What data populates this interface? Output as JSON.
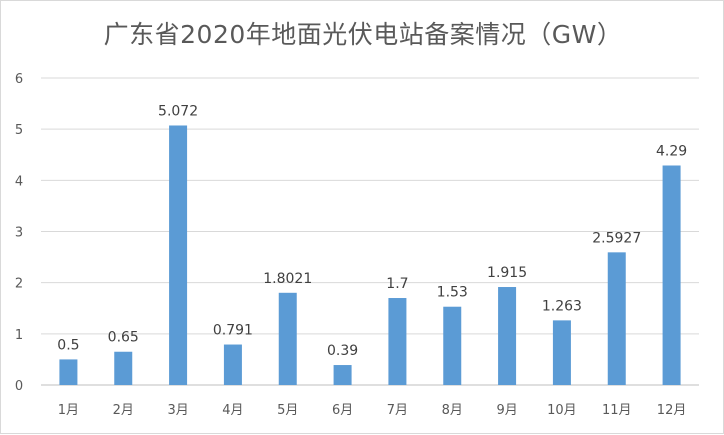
{
  "chart_data": {
    "type": "bar",
    "title": "广东省2020年地面光伏电站备案情况（GW）",
    "categories": [
      "1月",
      "2月",
      "3月",
      "4月",
      "5月",
      "6月",
      "7月",
      "8月",
      "9月",
      "10月",
      "11月",
      "12月"
    ],
    "values": [
      0.5,
      0.65,
      5.072,
      0.791,
      1.8021,
      0.39,
      1.7,
      1.53,
      1.915,
      1.263,
      2.5927,
      4.29
    ],
    "data_labels": [
      "0.5",
      "0.65",
      "5.072",
      "0.791",
      "1.8021",
      "0.39",
      "1.7",
      "1.53",
      "1.915",
      "1.263",
      "2.5927",
      "4.29"
    ],
    "y_ticks": [
      "0",
      "1",
      "2",
      "3",
      "4",
      "5",
      "6"
    ],
    "ylim": [
      0,
      6
    ],
    "xlabel": "",
    "ylabel": "",
    "grid": true,
    "legend": "none",
    "bar_color": "#5b9bd5"
  }
}
